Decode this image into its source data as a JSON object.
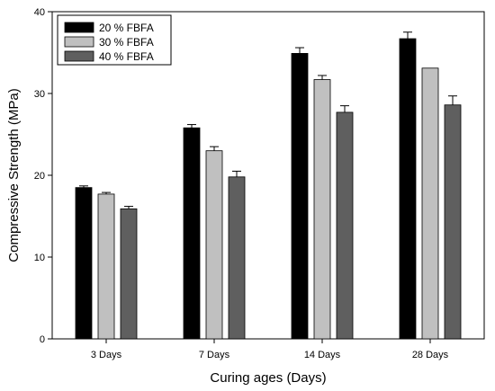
{
  "chart_data": {
    "type": "bar",
    "title": "",
    "xlabel": "Curing ages (Days)",
    "ylabel": "Compressive Strength (MPa)",
    "ylim": [
      0,
      40
    ],
    "yticks": [
      0,
      10,
      20,
      30,
      40
    ],
    "categories": [
      "3 Days",
      "7 Days",
      "14 Days",
      "28 Days"
    ],
    "series": [
      {
        "name": "20 % FBFA",
        "color": "#000000",
        "values": [
          18.5,
          25.8,
          34.9,
          36.7
        ],
        "errors": [
          0.2,
          0.4,
          0.7,
          0.8
        ]
      },
      {
        "name": "30 % FBFA",
        "color": "#c0c0c0",
        "values": [
          17.7,
          23.0,
          31.7,
          33.1
        ],
        "errors": [
          0.2,
          0.5,
          0.5,
          0.0
        ]
      },
      {
        "name": "40 % FBFA",
        "color": "#5f5f5f",
        "values": [
          15.9,
          19.8,
          27.7,
          28.6
        ],
        "errors": [
          0.3,
          0.7,
          0.8,
          1.1
        ]
      }
    ],
    "legend": {
      "position": "top-left"
    },
    "grid": false
  }
}
